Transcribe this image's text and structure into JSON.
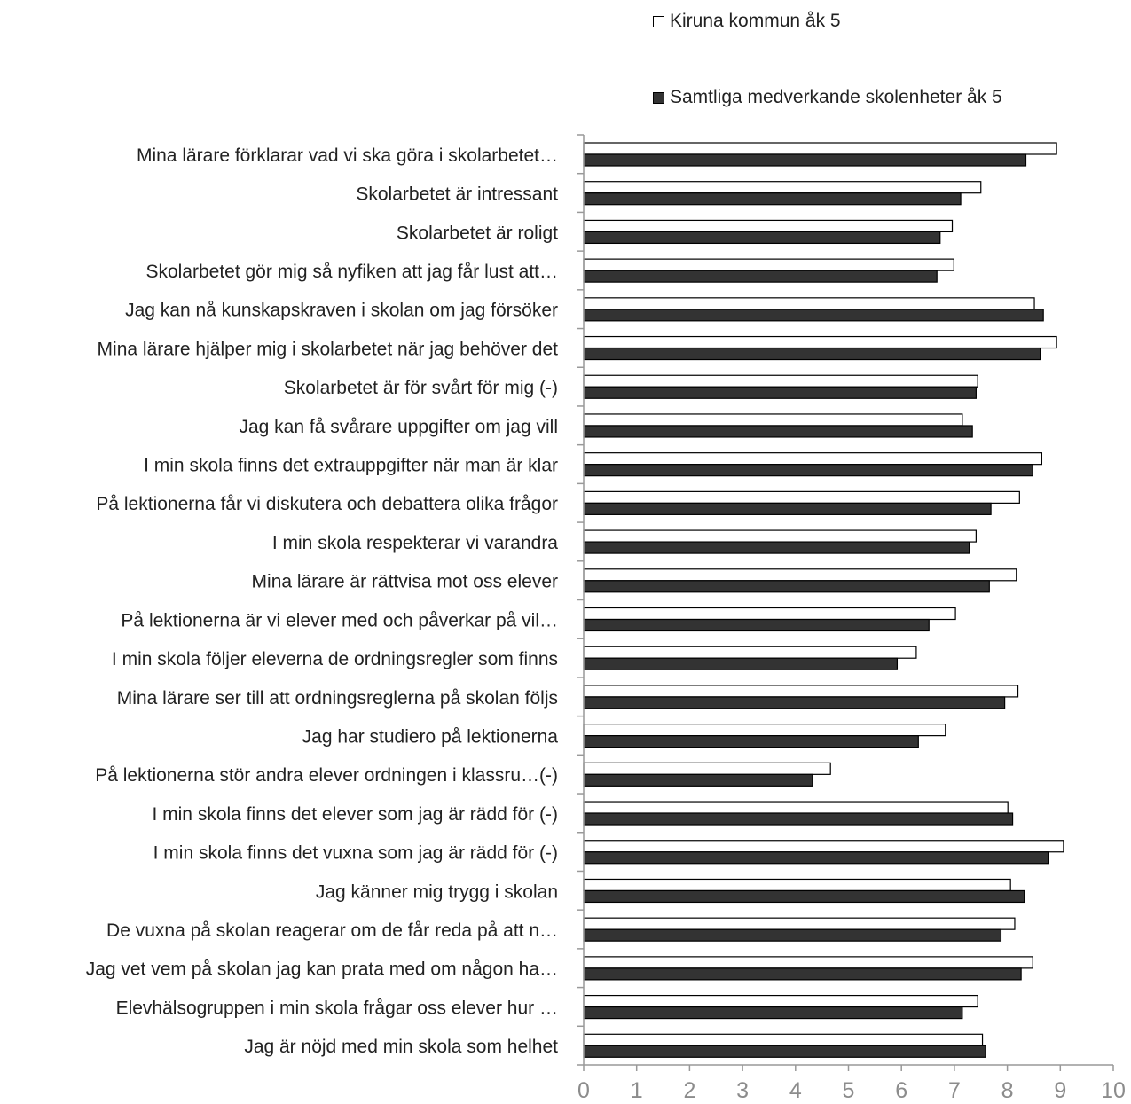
{
  "chart_data": {
    "type": "bar",
    "orientation": "horizontal",
    "categories": [
      "Mina lärare förklarar vad vi ska göra i skolarbetet…",
      "Skolarbetet är intressant",
      "Skolarbetet är roligt",
      "Skolarbetet gör mig så nyfiken att jag får lust att…",
      "Jag kan nå kunskapskraven i skolan om jag försöker",
      "Mina lärare hjälper mig i skolarbetet när jag behöver det",
      "Skolarbetet är för svårt för mig (-)",
      "Jag kan få svårare uppgifter om jag vill",
      "I min skola finns det extrauppgifter när man är klar",
      "På lektionerna får vi diskutera och debattera olika frågor",
      "I min skola respekterar vi varandra",
      "Mina lärare är rättvisa mot oss elever",
      "På lektionerna är vi elever med och påverkar på vil…",
      "I min skola följer eleverna de ordningsregler som finns",
      "Mina lärare ser till att ordningsreglerna på skolan följs",
      "Jag har studiero på lektionerna",
      "På lektionerna stör andra elever ordningen i klassru…(-)",
      "I min skola finns det elever som jag är rädd för (-)",
      "I min skola finns det vuxna som jag är rädd för (-)",
      "Jag känner mig trygg i skolan",
      "De vuxna på skolan reagerar om de får reda på att n…",
      "Jag vet vem på skolan jag kan prata med om någon ha…",
      "Elevhälsogruppen i min skola frågar oss elever hur …",
      "Jag är nöjd med min skola som helhet"
    ],
    "series": [
      {
        "name": "Kiruna kommun åk 5",
        "color": "#ffffff",
        "values": [
          8.93,
          7.5,
          6.96,
          6.99,
          8.51,
          8.93,
          7.44,
          7.15,
          8.65,
          8.23,
          7.41,
          8.17,
          7.02,
          6.28,
          8.2,
          6.83,
          4.66,
          8.01,
          9.06,
          8.06,
          8.14,
          8.48,
          7.44,
          7.53
        ]
      },
      {
        "name": "Samtliga medverkande skolenheter åk 5",
        "color": "#333333",
        "values": [
          8.35,
          7.12,
          6.73,
          6.67,
          8.68,
          8.62,
          7.41,
          7.34,
          8.48,
          7.69,
          7.28,
          7.66,
          6.52,
          5.92,
          7.95,
          6.32,
          4.32,
          8.1,
          8.77,
          8.32,
          7.88,
          8.26,
          7.15,
          7.59
        ]
      }
    ],
    "xticks": [
      "0",
      "1",
      "2",
      "3",
      "4",
      "5",
      "6",
      "7",
      "8",
      "9",
      "10"
    ],
    "xlim": [
      0,
      10
    ],
    "title": "",
    "xlabel": "",
    "ylabel": "",
    "grid": false,
    "legend_position": "top-right"
  },
  "legend": {
    "kiruna_label": "Kiruna kommun åk 5",
    "samtliga_label": "Samtliga medverkande skolenheter åk 5"
  }
}
